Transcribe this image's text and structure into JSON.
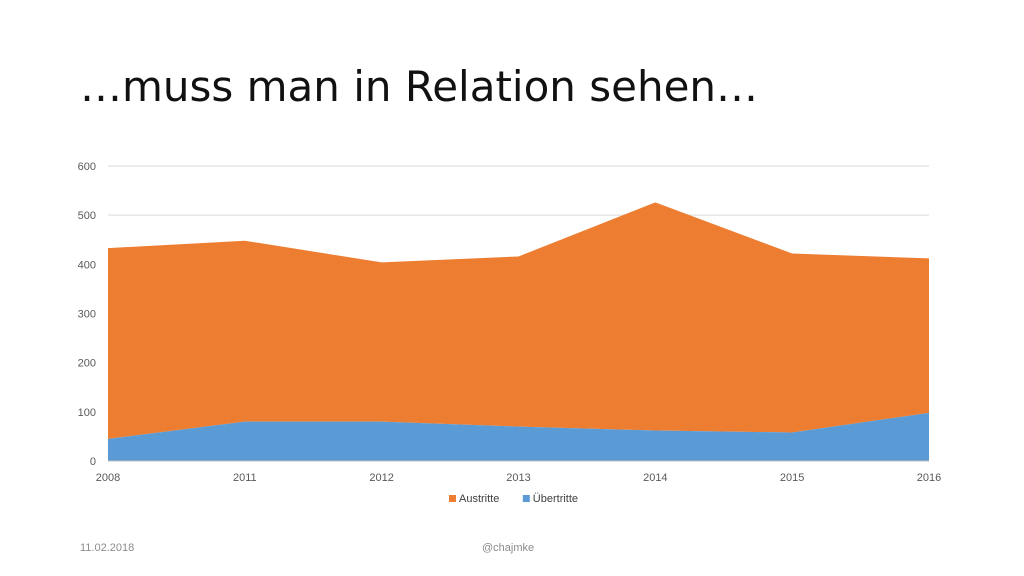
{
  "slide": {
    "title": "…muss man in Relation sehen…",
    "footer_date": "11.02.2018",
    "footer_handle": "@chajmke"
  },
  "colors": {
    "austritte": "#ED7D31",
    "uebertritte": "#5B9BD5",
    "grid": "#D9D9D9"
  },
  "chart_data": {
    "type": "area",
    "stacked": true,
    "categories": [
      "2008",
      "2011",
      "2012",
      "2013",
      "2014",
      "2015",
      "2016"
    ],
    "series": [
      {
        "name": "Übertritte",
        "values": [
          45,
          80,
          80,
          70,
          62,
          58,
          98
        ]
      },
      {
        "name": "Austritte",
        "values": [
          388,
          368,
          324,
          346,
          464,
          364,
          314
        ]
      }
    ],
    "ylim": [
      0,
      600
    ],
    "yticks": [
      0,
      100,
      200,
      300,
      400,
      500,
      600
    ],
    "grid": true,
    "legend": "bottom",
    "xlabel": "",
    "ylabel": ""
  }
}
